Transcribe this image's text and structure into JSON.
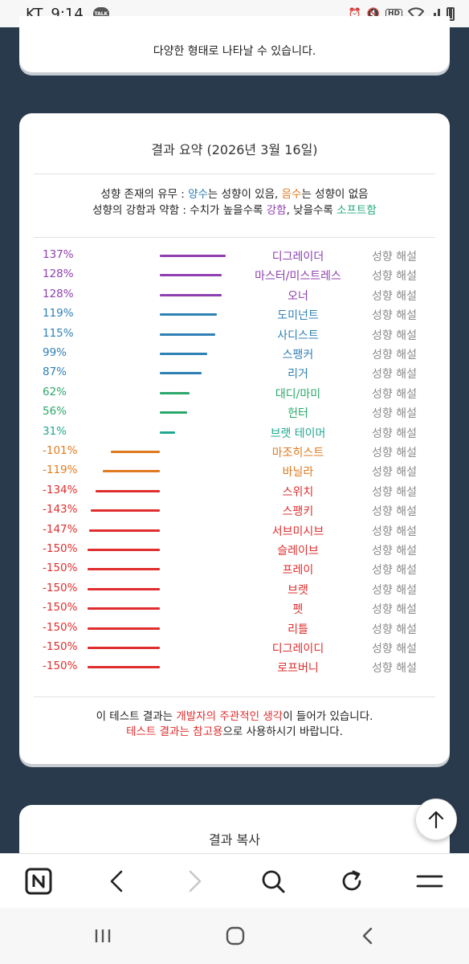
{
  "status": {
    "carrier": "KT",
    "time": "9:14",
    "talk": "TALK",
    "hd": "HD"
  },
  "top_card": {
    "text": "다양한 형태로 나타날 수 있습니다."
  },
  "summary": {
    "title": "결과 요약 (2026년 3월 16일)",
    "legend1": {
      "a": "성향 존재의 유무 : ",
      "b": "양수",
      "c": "는 성향이 있음, ",
      "d": "음수",
      "e": "는 성향이 없음"
    },
    "legend2": {
      "a": "성향의 강함과 약함 : 수치가 높을수록 ",
      "b": "강함",
      "c": ", 낮을수록 ",
      "d": "소프트함"
    },
    "explain_label": "성향 해설",
    "disclaimer1": {
      "a": "이 테스트 결과는 ",
      "b": "개발자의 주관적인 생각",
      "c": "이 들어가 있습니다."
    },
    "disclaimer2": {
      "a": "테스트 결과는 참고용",
      "b": "으로 사용하시기 바랍니다."
    }
  },
  "chart_data": {
    "type": "bar",
    "categories": [
      "디그레이더",
      "마스터/미스트레스",
      "오너",
      "도미넌트",
      "사디스트",
      "스팽커",
      "리거",
      "대디/마미",
      "헌터",
      "브랫 테이머",
      "마조히스트",
      "바닐라",
      "스위치",
      "스팽키",
      "서브미시브",
      "슬레이브",
      "프레이",
      "브랫",
      "펫",
      "리틀",
      "디그레이디",
      "로프버니"
    ],
    "values": [
      137,
      128,
      128,
      119,
      115,
      99,
      87,
      62,
      56,
      31,
      -101,
      -119,
      -134,
      -143,
      -147,
      -150,
      -150,
      -150,
      -150,
      -150,
      -150,
      -150
    ],
    "labels": [
      "137%",
      "128%",
      "128%",
      "119%",
      "115%",
      "99%",
      "87%",
      "62%",
      "56%",
      "31%",
      "-101%",
      "-119%",
      "-134%",
      "-143%",
      "-147%",
      "-150%",
      "-150%",
      "-150%",
      "-150%",
      "-150%",
      "-150%",
      "-150%"
    ],
    "colors": [
      "#8e3fb0",
      "#8e3fb0",
      "#8e3fb0",
      "#2f80b5",
      "#2f80b5",
      "#2f80b5",
      "#2f80b5",
      "#2aa86a",
      "#2aa86a",
      "#1fa890",
      "#e07a1f",
      "#e07a1f",
      "#e02d2d",
      "#e02d2d",
      "#e02d2d",
      "#e02d2d",
      "#e02d2d",
      "#e02d2d",
      "#e02d2d",
      "#e02d2d",
      "#e02d2d",
      "#e02d2d"
    ]
  },
  "copy_card": {
    "title": "결과 복사"
  },
  "toolbar": {
    "home_icon": "naver-n-icon",
    "back_icon": "chevron-left-icon",
    "forward_icon": "chevron-right-icon",
    "search_icon": "search-icon",
    "refresh_icon": "refresh-icon",
    "menu_icon": "menu-icon"
  },
  "navbar": {
    "recent_icon": "recent-apps-icon",
    "home_icon": "home-circle-icon",
    "back_icon": "back-chevron-icon"
  }
}
